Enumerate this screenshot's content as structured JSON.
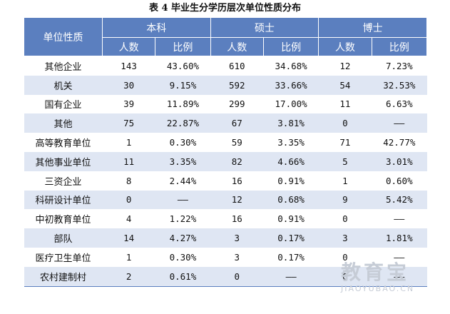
{
  "caption": "表 4   毕业生分学历层次单位性质分布",
  "header": {
    "row_header": "单位性质",
    "groups": [
      "本科",
      "硕士",
      "博士"
    ],
    "sub": [
      "人数",
      "比例",
      "人数",
      "比例",
      "人数",
      "比例"
    ]
  },
  "rows": [
    {
      "cat": "其他企业",
      "v": [
        "143",
        "43.60%",
        "610",
        "34.68%",
        "12",
        "7.23%"
      ]
    },
    {
      "cat": "机关",
      "v": [
        "30",
        "9.15%",
        "592",
        "33.66%",
        "54",
        "32.53%"
      ]
    },
    {
      "cat": "国有企业",
      "v": [
        "39",
        "11.89%",
        "299",
        "17.00%",
        "11",
        "6.63%"
      ]
    },
    {
      "cat": "其他",
      "v": [
        "75",
        "22.87%",
        "67",
        "3.81%",
        "0",
        "——"
      ]
    },
    {
      "cat": "高等教育单位",
      "v": [
        "1",
        "0.30%",
        "59",
        "3.35%",
        "71",
        "42.77%"
      ]
    },
    {
      "cat": "其他事业单位",
      "v": [
        "11",
        "3.35%",
        "82",
        "4.66%",
        "5",
        "3.01%"
      ]
    },
    {
      "cat": "三资企业",
      "v": [
        "8",
        "2.44%",
        "16",
        "0.91%",
        "1",
        "0.60%"
      ]
    },
    {
      "cat": "科研设计单位",
      "v": [
        "0",
        "——",
        "12",
        "0.68%",
        "9",
        "5.42%"
      ]
    },
    {
      "cat": "中初教育单位",
      "v": [
        "4",
        "1.22%",
        "16",
        "0.91%",
        "0",
        "——"
      ]
    },
    {
      "cat": "部队",
      "v": [
        "14",
        "4.27%",
        "3",
        "0.17%",
        "3",
        "1.81%"
      ]
    },
    {
      "cat": "医疗卫生单位",
      "v": [
        "1",
        "0.30%",
        "3",
        "0.17%",
        "0",
        "——"
      ]
    },
    {
      "cat": "农村建制村",
      "v": [
        "2",
        "0.61%",
        "0",
        "——",
        "0",
        "——"
      ]
    }
  ],
  "watermark": {
    "cn": "教育宝",
    "en": "JIAOYUBAO.CN"
  }
}
